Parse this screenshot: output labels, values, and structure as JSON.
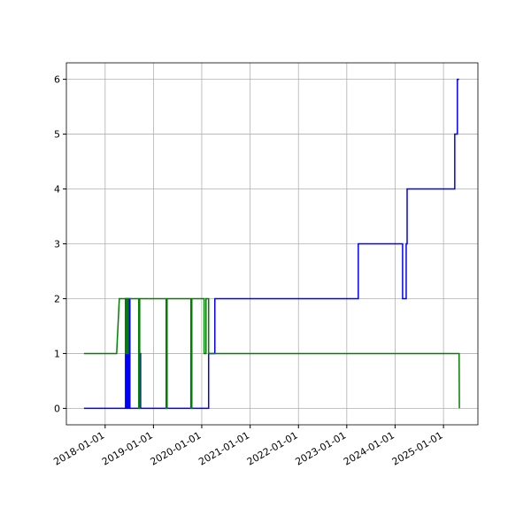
{
  "chart_data": {
    "type": "line",
    "grid": true,
    "xlim": [
      "2017-03-14",
      "2025-09-18"
    ],
    "xticks": [
      "2018-01-01",
      "2019-01-01",
      "2020-01-01",
      "2021-01-01",
      "2022-01-01",
      "2023-01-01",
      "2024-01-01",
      "2025-01-01"
    ],
    "ylim": [
      -0.3,
      6.3
    ],
    "yticks": [
      0,
      1,
      2,
      3,
      4,
      5,
      6
    ],
    "series": [
      {
        "color": "#0000ff",
        "x": [
          "2017-07-25",
          "2018-06-04",
          "2018-06-04",
          "2018-06-11",
          "2018-06-11",
          "2018-06-17",
          "2018-06-17",
          "2018-06-24",
          "2018-06-24",
          "2018-07-01",
          "2018-07-01",
          "2018-07-07",
          "2018-07-07",
          "2018-09-19",
          "2018-09-19",
          "2018-09-26",
          "2018-09-26",
          "2019-04-07",
          "2019-04-07",
          "2019-04-14",
          "2019-04-14",
          "2019-10-11",
          "2019-10-11",
          "2019-10-18",
          "2019-10-18",
          "2020-02-22",
          "2020-02-22",
          "2020-04-09",
          "2020-04-09",
          "2023-03-29",
          "2023-03-29",
          "2024-02-27",
          "2024-02-27",
          "2024-03-25",
          "2024-03-25",
          "2024-04-01",
          "2024-04-01",
          "2025-03-27",
          "2025-03-27",
          "2025-04-16",
          "2025-04-16",
          "2025-04-29"
        ],
        "values": [
          0,
          0,
          2,
          2,
          0,
          0,
          2,
          2,
          0,
          0,
          2,
          2,
          0,
          0,
          1,
          1,
          0,
          0,
          1,
          1,
          0,
          0,
          1,
          1,
          0,
          0,
          1,
          1,
          2,
          2,
          3,
          3,
          2,
          2,
          3,
          3,
          4,
          4,
          5,
          5,
          6,
          6
        ]
      },
      {
        "color": "#008000",
        "x": [
          "2017-07-25",
          "2018-03-29",
          "2018-04-18",
          "2018-06-04",
          "2018-06-04",
          "2018-06-11",
          "2018-06-11",
          "2018-06-17",
          "2018-06-17",
          "2018-06-24",
          "2018-06-24",
          "2018-07-01",
          "2018-07-01",
          "2018-09-12",
          "2018-09-12",
          "2018-09-19",
          "2018-09-19",
          "2019-04-07",
          "2019-04-07",
          "2019-04-14",
          "2019-04-14",
          "2019-10-11",
          "2019-10-11",
          "2019-10-18",
          "2019-10-18",
          "2020-01-19",
          "2020-01-19",
          "2020-02-02",
          "2020-02-02",
          "2020-02-22",
          "2020-02-22",
          "2025-04-29",
          "2025-05-01"
        ],
        "values": [
          1,
          1,
          2,
          2,
          1,
          1,
          2,
          2,
          1,
          1,
          2,
          2,
          2,
          2,
          0,
          0,
          2,
          2,
          0,
          0,
          2,
          2,
          0,
          0,
          2,
          2,
          1,
          1,
          2,
          2,
          1,
          1,
          0
        ]
      }
    ]
  }
}
